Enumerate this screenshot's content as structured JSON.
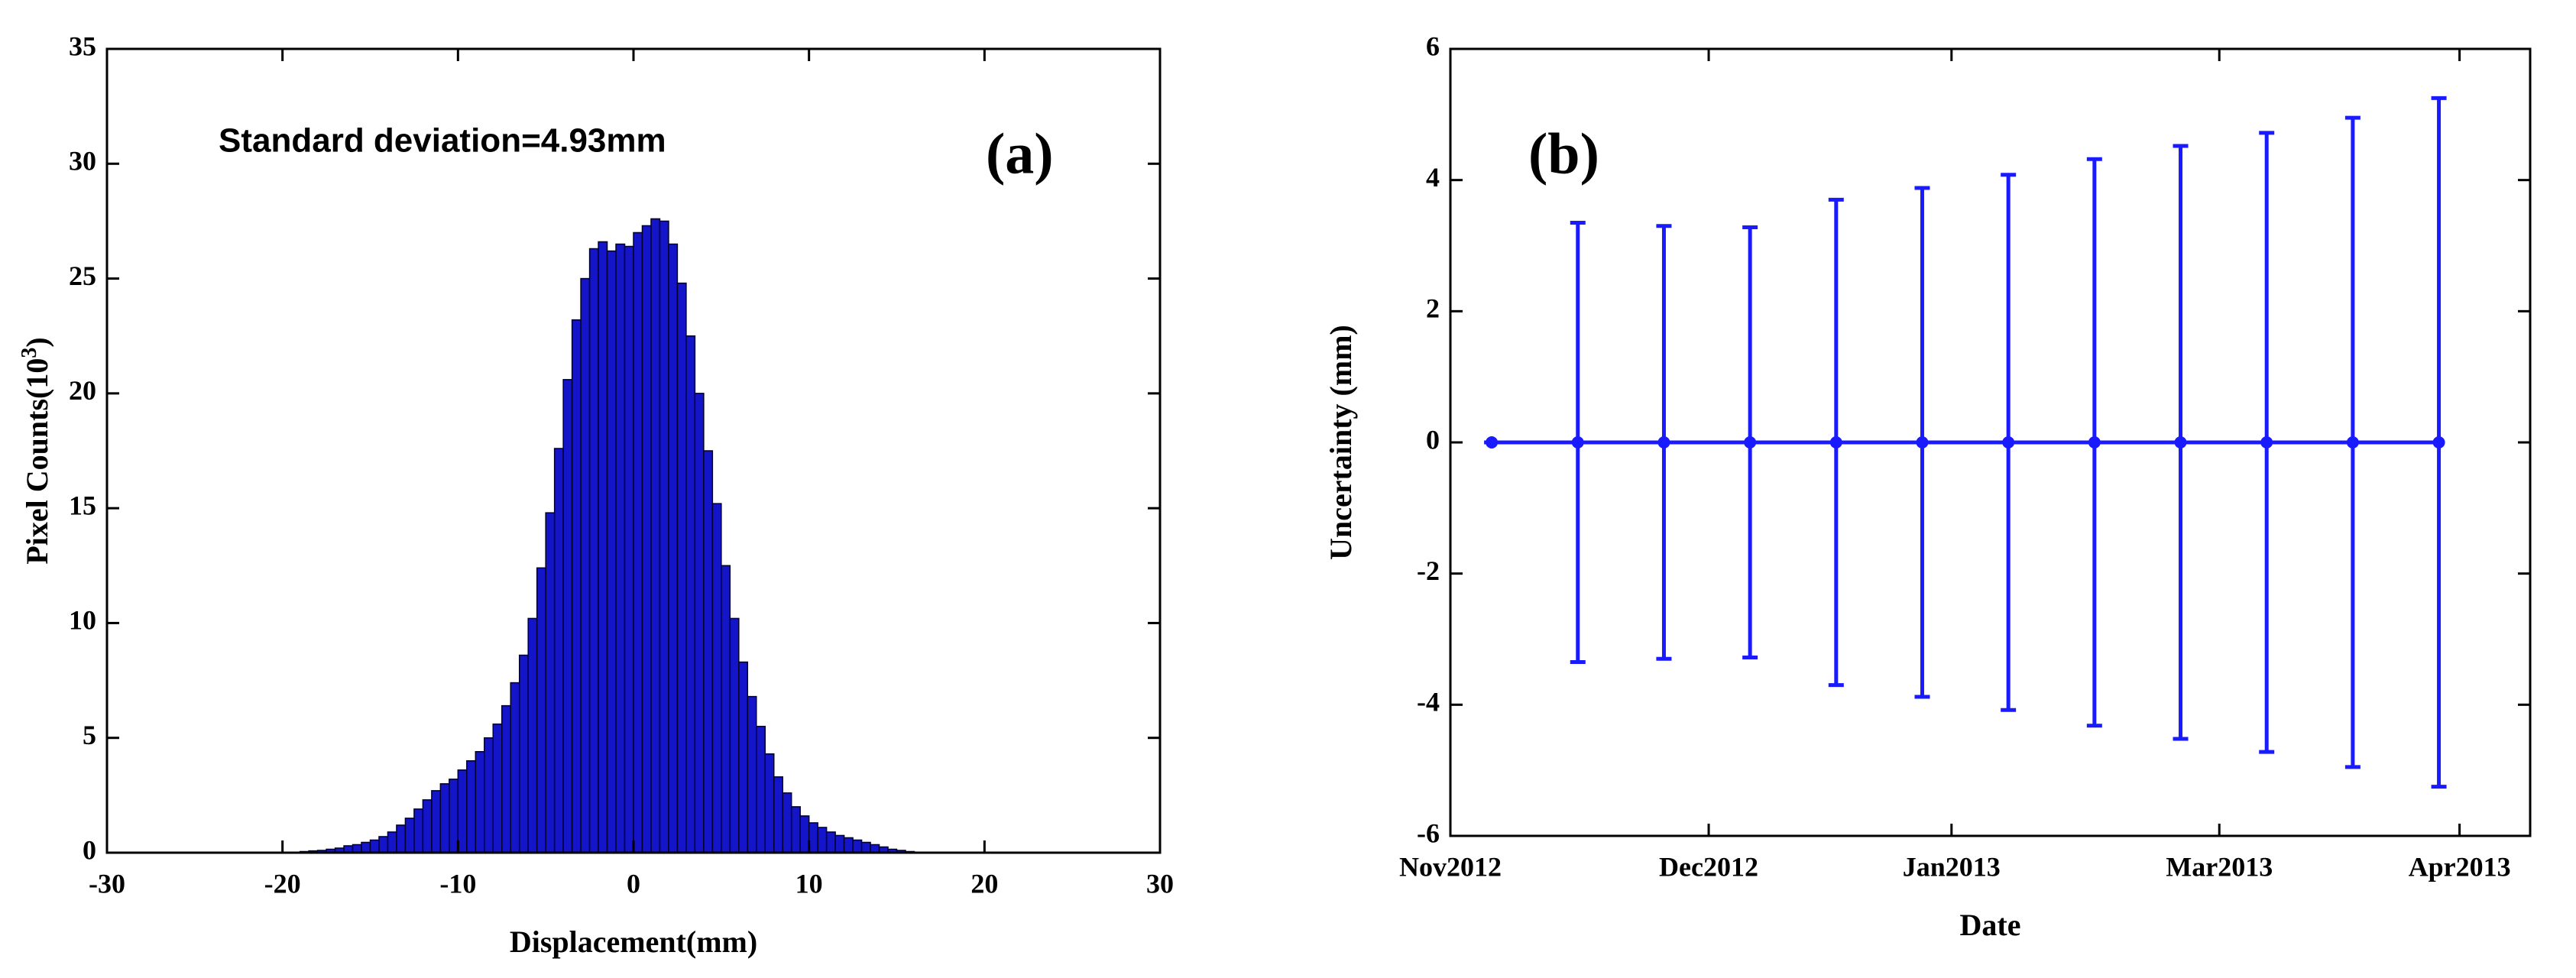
{
  "chart_data": [
    {
      "type": "histogram",
      "annotation": "Standard deviation=4.93mm",
      "panel_label": "(a)",
      "xlabel": "Displacement(mm)",
      "ylabel": [
        "Pixel Counts(10",
        "3",
        ")"
      ],
      "color": "#1414c8",
      "edge_color": "#00002a",
      "bins": [
        -19,
        -18.5,
        -18,
        -17.5,
        -17,
        -16.5,
        -16,
        -15.5,
        -15,
        -14.5,
        -14,
        -13.5,
        -13,
        -12.5,
        -12,
        -11.5,
        -11,
        -10.5,
        -10,
        -9.5,
        -9,
        -8.5,
        -8,
        -7.5,
        -7,
        -6.5,
        -6,
        -5.5,
        -5,
        -4.5,
        -4,
        -3.5,
        -3,
        -2.5,
        -2,
        -1.5,
        -1,
        -0.5,
        0,
        0.5,
        1,
        1.5,
        2,
        2.5,
        3,
        3.5,
        4,
        4.5,
        5,
        5.5,
        6,
        6.5,
        7,
        7.5,
        8,
        8.5,
        9,
        9.5,
        10,
        10.5,
        11,
        11.5,
        12,
        12.5,
        13,
        13.5,
        14,
        14.5,
        15,
        15.5,
        16
      ],
      "counts": [
        0.05,
        0.08,
        0.1,
        0.15,
        0.2,
        0.3,
        0.35,
        0.45,
        0.55,
        0.7,
        0.9,
        1.2,
        1.5,
        1.9,
        2.3,
        2.7,
        3.0,
        3.2,
        3.6,
        4.0,
        4.4,
        5.0,
        5.6,
        6.4,
        7.4,
        8.6,
        10.2,
        12.4,
        14.8,
        17.6,
        20.6,
        23.2,
        25.0,
        26.3,
        26.6,
        26.2,
        26.5,
        26.4,
        27.0,
        27.3,
        27.6,
        27.5,
        26.5,
        24.8,
        22.5,
        20.0,
        17.5,
        15.2,
        12.5,
        10.2,
        8.3,
        6.8,
        5.5,
        4.3,
        3.3,
        2.6,
        2.0,
        1.6,
        1.3,
        1.1,
        0.9,
        0.75,
        0.65,
        0.55,
        0.45,
        0.35,
        0.25,
        0.15,
        0.1,
        0.05
      ],
      "xlim": [
        -30,
        30
      ],
      "xticks": [
        -30,
        -20,
        -10,
        0,
        10,
        20,
        30
      ],
      "ylim": [
        0,
        35
      ],
      "yticks": [
        0,
        5,
        10,
        15,
        20,
        25,
        30,
        35
      ]
    },
    {
      "type": "errorbar",
      "panel_label": "(b)",
      "xlabel": "Date",
      "ylabel": "Uncertainty (mm)",
      "color": "#1a1aff",
      "x": [
        0,
        1,
        2,
        3,
        4,
        5,
        6,
        7,
        8,
        9,
        10,
        11
      ],
      "values": [
        0,
        0,
        0,
        0,
        0,
        0,
        0,
        0,
        0,
        0,
        0,
        0
      ],
      "errors": [
        0,
        3.35,
        3.3,
        3.28,
        3.7,
        3.88,
        4.08,
        4.32,
        4.52,
        4.72,
        4.95,
        5.25
      ],
      "xlim": [
        -0.48,
        12.06
      ],
      "xticks": [
        {
          "value": -0.48,
          "label": "Nov2012"
        },
        {
          "value": 2.52,
          "label": "Dec2012"
        },
        {
          "value": 5.34,
          "label": "Jan2013"
        },
        {
          "value": 8.45,
          "label": "Mar2013"
        },
        {
          "value": 11.24,
          "label": "Apr2013"
        }
      ],
      "ylim": [
        -6,
        6
      ],
      "yticks": [
        -6,
        -4,
        -2,
        0,
        2,
        4,
        6
      ]
    }
  ]
}
